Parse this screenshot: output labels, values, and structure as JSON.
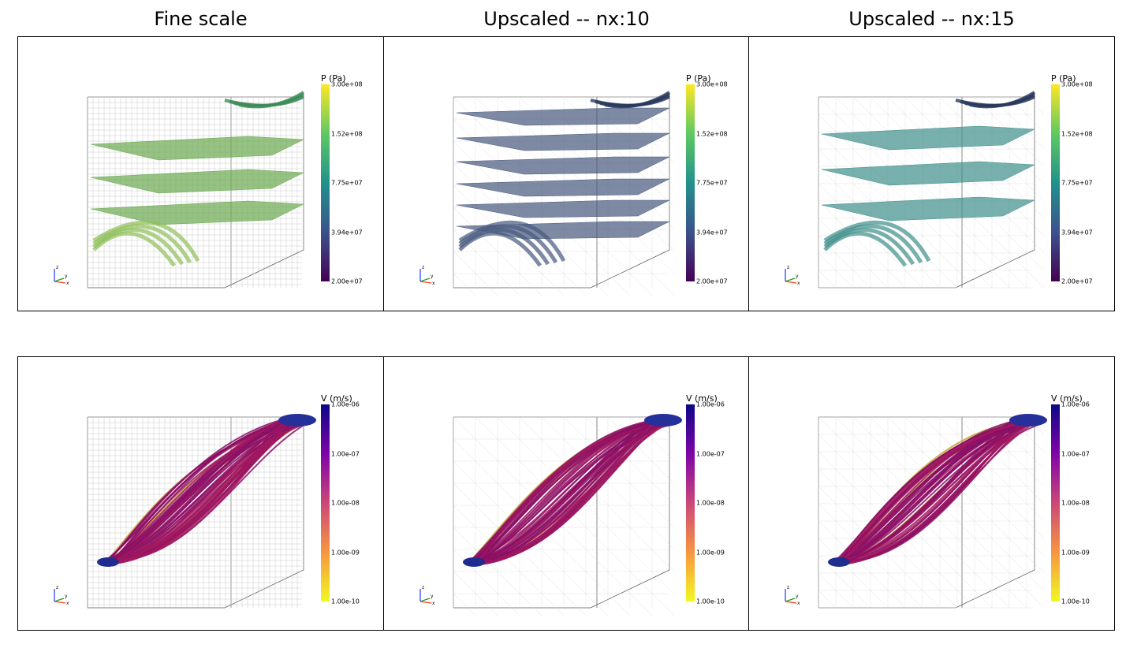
{
  "columns": [
    "Fine scale",
    "Upscaled -- nx:10",
    "Upscaled -- nx:15"
  ],
  "rows": [
    {
      "colorbar": {
        "title": "P (Pa)",
        "ticks": [
          "3.00e+08",
          "1.52e+08",
          "7.75e+07",
          "3.94e+07",
          "2.00e+07"
        ],
        "colormap": "viridis",
        "colors": [
          "#fde725",
          "#5ec962",
          "#21918c",
          "#3b528b",
          "#440154"
        ]
      }
    },
    {
      "colorbar": {
        "title": "V (m/s)",
        "ticks": [
          "1.00e-06",
          "1.00e-07",
          "1.00e-08",
          "1.00e-09",
          "1.00e-10"
        ],
        "colormap": "plasma",
        "colors": [
          "#0d0887",
          "#7e03a8",
          "#cc4778",
          "#f89540",
          "#f0f921"
        ]
      }
    }
  ],
  "axes_triad_labels": [
    "z",
    "y",
    "x"
  ],
  "surface_colors": {
    "fine": "#6aa84f",
    "nx10": "#47597d",
    "nx15": "#3e8f8a"
  }
}
